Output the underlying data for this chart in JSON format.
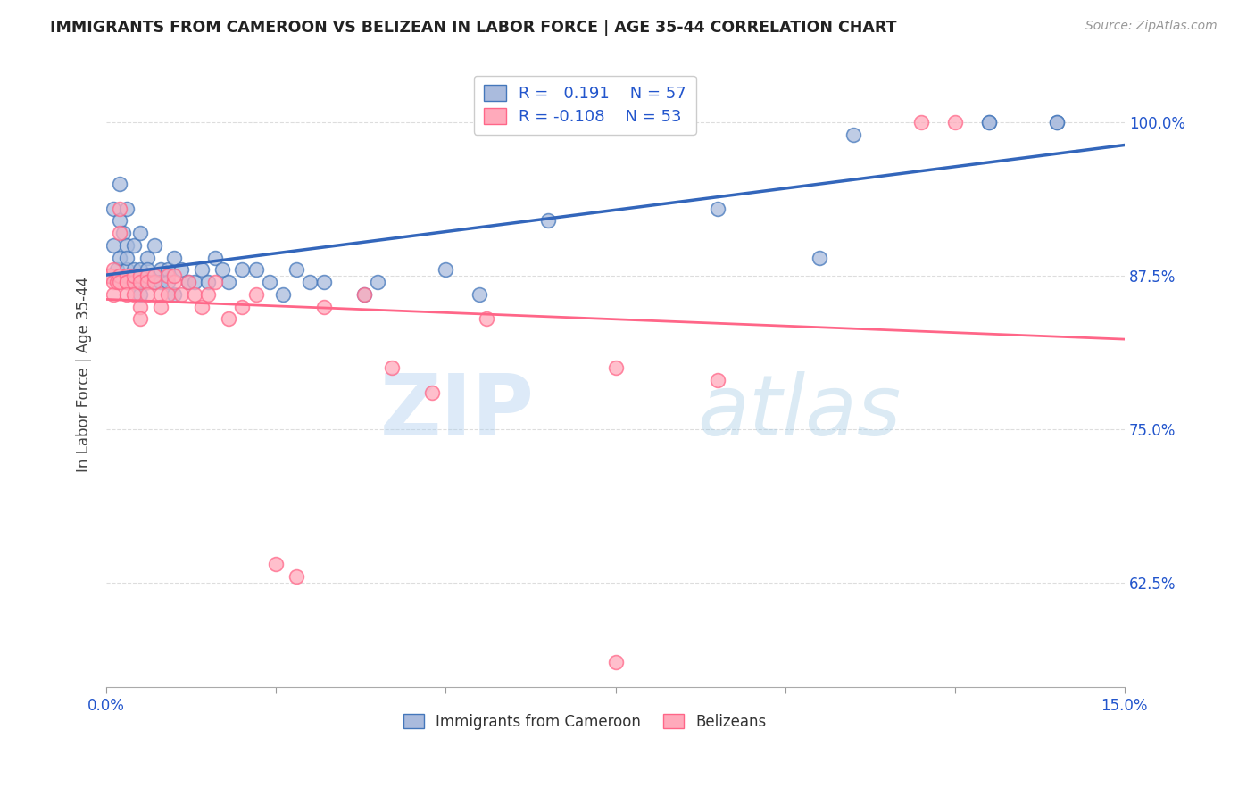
{
  "title": "IMMIGRANTS FROM CAMEROON VS BELIZEAN IN LABOR FORCE | AGE 35-44 CORRELATION CHART",
  "source": "Source: ZipAtlas.com",
  "ylabel": "In Labor Force | Age 35-44",
  "yticks": [
    0.625,
    0.75,
    0.875,
    1.0
  ],
  "ytick_labels": [
    "62.5%",
    "75.0%",
    "87.5%",
    "100.0%"
  ],
  "xlim": [
    0.0,
    0.15
  ],
  "ylim": [
    0.54,
    1.05
  ],
  "legend_r1": "R =   0.191",
  "legend_n1": "N = 57",
  "legend_r2": "R = -0.108",
  "legend_n2": "N = 53",
  "legend_label1": "Immigrants from Cameroon",
  "legend_label2": "Belizeans",
  "blue_fill": "#AABBDD",
  "blue_edge": "#4477BB",
  "pink_fill": "#FFAABB",
  "pink_edge": "#FF6688",
  "blue_line_color": "#3366BB",
  "pink_line_color": "#FF6688",
  "blue_scatter_x": [
    0.0005,
    0.001,
    0.001,
    0.0015,
    0.002,
    0.002,
    0.002,
    0.0025,
    0.003,
    0.003,
    0.003,
    0.003,
    0.004,
    0.004,
    0.004,
    0.005,
    0.005,
    0.005,
    0.005,
    0.006,
    0.006,
    0.006,
    0.007,
    0.007,
    0.008,
    0.008,
    0.009,
    0.009,
    0.01,
    0.01,
    0.011,
    0.012,
    0.013,
    0.014,
    0.015,
    0.016,
    0.017,
    0.018,
    0.02,
    0.022,
    0.024,
    0.026,
    0.028,
    0.03,
    0.032,
    0.038,
    0.04,
    0.05,
    0.055,
    0.065,
    0.09,
    0.105,
    0.11,
    0.13,
    0.13,
    0.14,
    0.14
  ],
  "blue_scatter_y": [
    0.875,
    0.9,
    0.93,
    0.88,
    0.95,
    0.92,
    0.89,
    0.91,
    0.9,
    0.93,
    0.88,
    0.89,
    0.9,
    0.87,
    0.88,
    0.91,
    0.88,
    0.87,
    0.86,
    0.89,
    0.87,
    0.88,
    0.9,
    0.87,
    0.88,
    0.87,
    0.88,
    0.87,
    0.89,
    0.86,
    0.88,
    0.87,
    0.87,
    0.88,
    0.87,
    0.89,
    0.88,
    0.87,
    0.88,
    0.88,
    0.87,
    0.86,
    0.88,
    0.87,
    0.87,
    0.86,
    0.87,
    0.88,
    0.86,
    0.92,
    0.93,
    0.89,
    0.99,
    1.0,
    1.0,
    1.0,
    1.0
  ],
  "pink_scatter_x": [
    0.0003,
    0.0005,
    0.001,
    0.001,
    0.001,
    0.0015,
    0.002,
    0.002,
    0.002,
    0.002,
    0.003,
    0.003,
    0.003,
    0.003,
    0.004,
    0.004,
    0.004,
    0.005,
    0.005,
    0.005,
    0.005,
    0.006,
    0.006,
    0.006,
    0.007,
    0.007,
    0.008,
    0.008,
    0.009,
    0.009,
    0.01,
    0.01,
    0.011,
    0.012,
    0.013,
    0.014,
    0.015,
    0.016,
    0.018,
    0.02,
    0.022,
    0.025,
    0.028,
    0.032,
    0.038,
    0.042,
    0.048,
    0.056,
    0.075,
    0.09,
    0.12,
    0.125,
    0.075
  ],
  "pink_scatter_y": [
    0.875,
    0.875,
    0.87,
    0.86,
    0.88,
    0.87,
    0.875,
    0.87,
    0.91,
    0.93,
    0.875,
    0.87,
    0.87,
    0.86,
    0.87,
    0.875,
    0.86,
    0.875,
    0.87,
    0.85,
    0.84,
    0.875,
    0.87,
    0.86,
    0.87,
    0.875,
    0.86,
    0.85,
    0.875,
    0.86,
    0.87,
    0.875,
    0.86,
    0.87,
    0.86,
    0.85,
    0.86,
    0.87,
    0.84,
    0.85,
    0.86,
    0.64,
    0.63,
    0.85,
    0.86,
    0.8,
    0.78,
    0.84,
    0.8,
    0.79,
    1.0,
    1.0,
    0.56
  ],
  "watermark_zip": "ZIP",
  "watermark_atlas": "atlas",
  "background_color": "#FFFFFF",
  "grid_color": "#DDDDDD",
  "xtick_positions": [
    0.0,
    0.025,
    0.05,
    0.075,
    0.1,
    0.125,
    0.15
  ]
}
